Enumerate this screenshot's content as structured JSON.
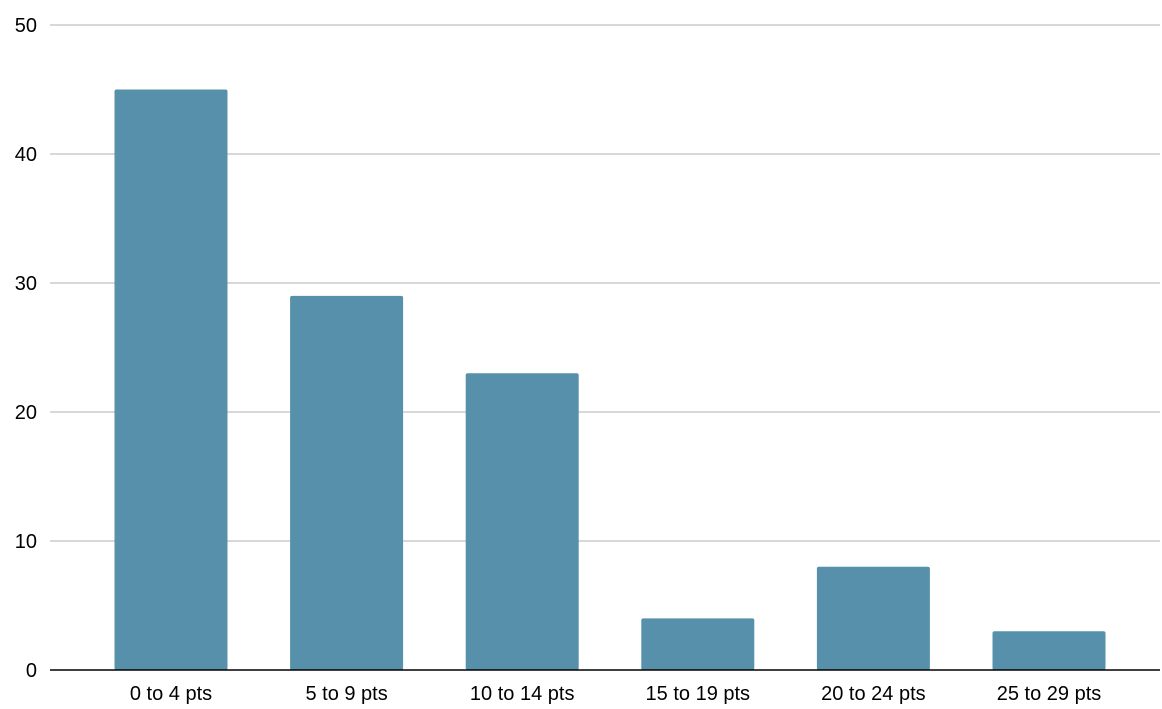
{
  "chart_data": {
    "type": "bar",
    "title": "",
    "xlabel": "",
    "ylabel": "",
    "categories": [
      "0 to 4 pts",
      "5 to 9 pts",
      "10 to 14 pts",
      "15 to 19 pts",
      "20 to 24 pts",
      "25 to 29 pts"
    ],
    "values": [
      45,
      29,
      23,
      4,
      8,
      3
    ],
    "ylim": [
      0,
      50
    ],
    "yticks": [
      "0",
      "10",
      "20",
      "30",
      "40",
      "50"
    ],
    "grid": true,
    "legend": "none",
    "bar_color": "#5790ab"
  }
}
